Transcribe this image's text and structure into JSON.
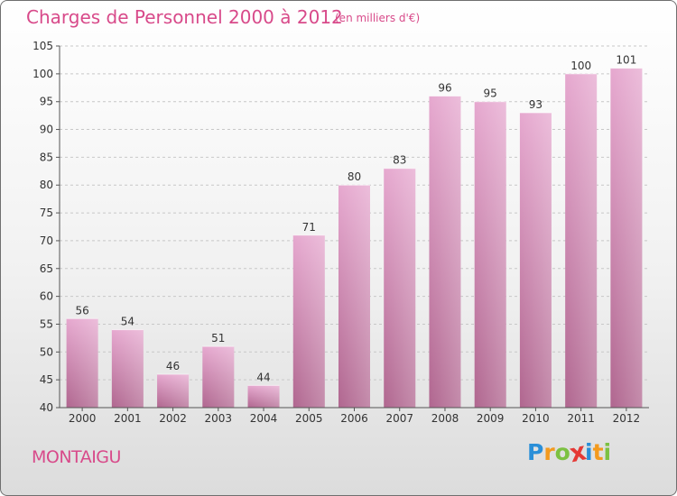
{
  "chart_data": {
    "type": "bar",
    "title": "Charges de Personnel 2000 à 2012",
    "unit": "(en milliers d'€)",
    "categories": [
      "2000",
      "2001",
      "2002",
      "2003",
      "2004",
      "2005",
      "2006",
      "2007",
      "2008",
      "2009",
      "2010",
      "2011",
      "2012"
    ],
    "values": [
      56,
      54,
      46,
      51,
      44,
      71,
      80,
      83,
      96,
      95,
      93,
      100,
      101
    ],
    "ylim": [
      40,
      105
    ],
    "yticks": [
      40,
      45,
      50,
      55,
      60,
      65,
      70,
      75,
      80,
      85,
      90,
      95,
      100,
      105
    ],
    "grid": true,
    "bar_color": "#d88fb8"
  },
  "commune": "MONTAIGU",
  "logo": {
    "letters": [
      "P",
      "r",
      "o",
      "x",
      "i",
      "t",
      "i"
    ],
    "colors": [
      "#2a8fd8",
      "#f39a1e",
      "#7cc142",
      "#e53935",
      "#2a8fd8",
      "#f39a1e",
      "#7cc142"
    ]
  }
}
